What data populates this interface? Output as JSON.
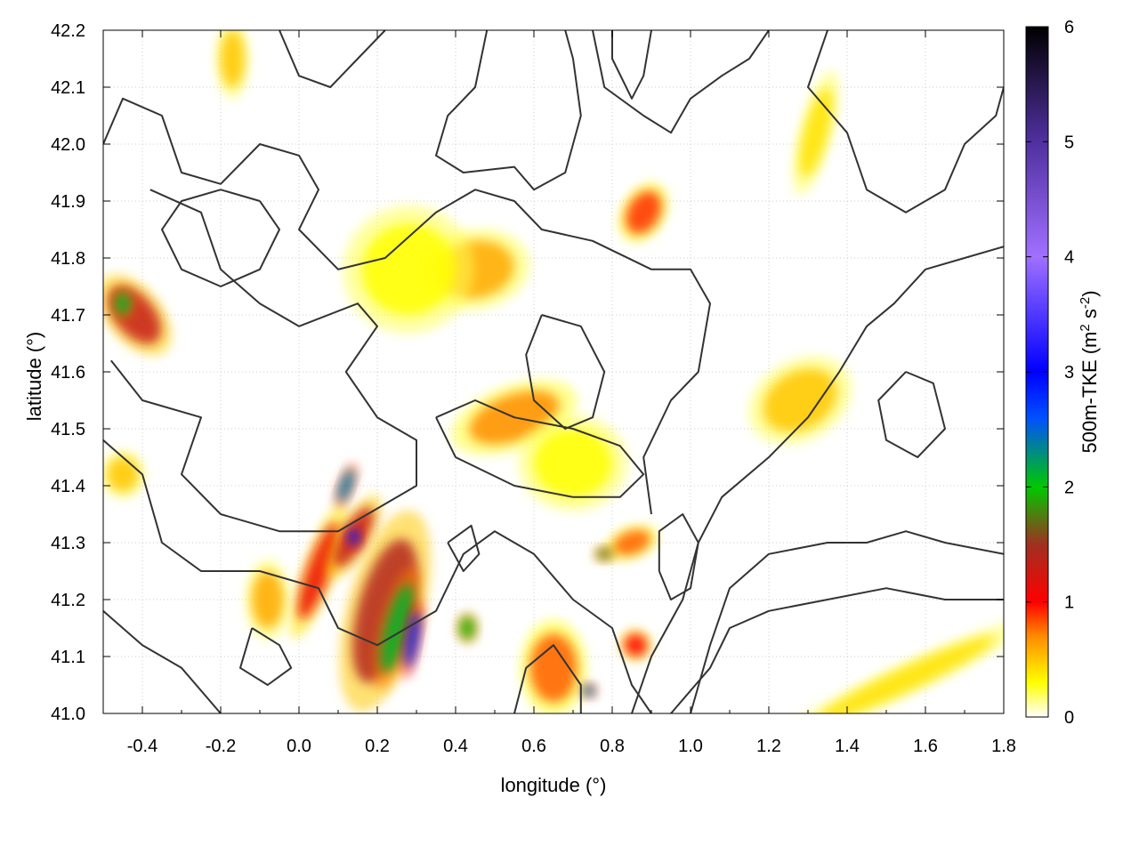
{
  "chart_data": {
    "type": "heatmap",
    "title": "",
    "xlabel": "longitude (°)",
    "ylabel": "latitude (°)",
    "xlim": [
      -0.5,
      1.8
    ],
    "ylim": [
      41.0,
      42.2
    ],
    "xticks": [
      "-0.4",
      "-0.2",
      "0.0",
      "0.2",
      "0.4",
      "0.6",
      "0.8",
      "1.0",
      "1.2",
      "1.4",
      "1.6",
      "1.8"
    ],
    "yticks": [
      "41.0",
      "41.1",
      "41.2",
      "41.3",
      "41.4",
      "41.5",
      "41.6",
      "41.7",
      "41.8",
      "41.9",
      "42.0",
      "42.1",
      "42.2"
    ],
    "grid": true,
    "colorbar": {
      "label_main": "500m-TKE (m",
      "label_sup1": "2",
      "label_mid": " s",
      "label_sup2": "-2",
      "label_end": ")",
      "range": [
        0,
        6
      ],
      "ticks": [
        "0",
        "1",
        "2",
        "3",
        "4",
        "5",
        "6"
      ],
      "stops": [
        {
          "value": 0.0,
          "color": "#ffffff"
        },
        {
          "value": 0.3,
          "color": "#ffff00"
        },
        {
          "value": 0.7,
          "color": "#ff8c00"
        },
        {
          "value": 1.0,
          "color": "#ff0000"
        },
        {
          "value": 1.5,
          "color": "#a03020"
        },
        {
          "value": 2.0,
          "color": "#00c800"
        },
        {
          "value": 2.6,
          "color": "#0050ff"
        },
        {
          "value": 3.0,
          "color": "#0000ff"
        },
        {
          "value": 4.0,
          "color": "#a070ff"
        },
        {
          "value": 5.0,
          "color": "#5030a0"
        },
        {
          "value": 6.0,
          "color": "#000000"
        }
      ]
    },
    "contour_color": "#333333",
    "tke_patches": [
      {
        "lon": -0.42,
        "lat": 41.7,
        "rx": 0.05,
        "ry": 0.06,
        "rot": -40,
        "value": 1.3
      },
      {
        "lon": -0.45,
        "lat": 41.72,
        "rx": 0.02,
        "ry": 0.02,
        "rot": 0,
        "value": 2.1
      },
      {
        "lon": 0.05,
        "lat": 41.25,
        "rx": 0.03,
        "ry": 0.09,
        "rot": 20,
        "value": 1.1
      },
      {
        "lon": 0.22,
        "lat": 41.18,
        "rx": 0.07,
        "ry": 0.13,
        "rot": 15,
        "value": 1.4
      },
      {
        "lon": 0.25,
        "lat": 41.15,
        "rx": 0.03,
        "ry": 0.08,
        "rot": 15,
        "value": 2.1
      },
      {
        "lon": 0.29,
        "lat": 41.13,
        "rx": 0.015,
        "ry": 0.05,
        "rot": 10,
        "value": 2.8
      },
      {
        "lon": 0.14,
        "lat": 41.31,
        "rx": 0.03,
        "ry": 0.06,
        "rot": 30,
        "value": 1.3
      },
      {
        "lon": 0.14,
        "lat": 41.31,
        "rx": 0.015,
        "ry": 0.015,
        "rot": 0,
        "value": 2.8
      },
      {
        "lon": 0.12,
        "lat": 41.4,
        "rx": 0.015,
        "ry": 0.03,
        "rot": 20,
        "value": 2.4
      },
      {
        "lon": 0.43,
        "lat": 41.15,
        "rx": 0.02,
        "ry": 0.02,
        "rot": 0,
        "value": 1.9
      },
      {
        "lon": 0.65,
        "lat": 41.08,
        "rx": 0.06,
        "ry": 0.06,
        "rot": 0,
        "value": 0.8
      },
      {
        "lon": 0.55,
        "lat": 41.52,
        "rx": 0.12,
        "ry": 0.04,
        "rot": -20,
        "value": 0.7
      },
      {
        "lon": 0.45,
        "lat": 41.78,
        "rx": 0.1,
        "ry": 0.05,
        "rot": -10,
        "value": 0.6
      },
      {
        "lon": 0.88,
        "lat": 41.88,
        "rx": 0.04,
        "ry": 0.04,
        "rot": 30,
        "value": 0.9
      },
      {
        "lon": 1.28,
        "lat": 41.55,
        "rx": 0.1,
        "ry": 0.05,
        "rot": -30,
        "value": 0.5
      },
      {
        "lon": 0.28,
        "lat": 41.78,
        "rx": 0.12,
        "ry": 0.08,
        "rot": -20,
        "value": 0.3
      },
      {
        "lon": -0.08,
        "lat": 41.2,
        "rx": 0.04,
        "ry": 0.05,
        "rot": 0,
        "value": 0.6
      },
      {
        "lon": -0.45,
        "lat": 41.42,
        "rx": 0.04,
        "ry": 0.03,
        "rot": 0,
        "value": 0.5
      },
      {
        "lon": 1.55,
        "lat": 41.06,
        "rx": 0.25,
        "ry": 0.02,
        "rot": -25,
        "value": 0.4
      },
      {
        "lon": 1.32,
        "lat": 42.02,
        "rx": 0.03,
        "ry": 0.08,
        "rot": 15,
        "value": 0.4
      },
      {
        "lon": 0.85,
        "lat": 41.3,
        "rx": 0.05,
        "ry": 0.02,
        "rot": -20,
        "value": 0.8
      },
      {
        "lon": 0.78,
        "lat": 41.28,
        "rx": 0.02,
        "ry": 0.01,
        "rot": 0,
        "value": 1.7
      },
      {
        "lon": 0.74,
        "lat": 41.04,
        "rx": 0.015,
        "ry": 0.01,
        "rot": 0,
        "value": 2.4
      },
      {
        "lon": 0.86,
        "lat": 41.12,
        "rx": 0.03,
        "ry": 0.02,
        "rot": 30,
        "value": 1.0
      },
      {
        "lon": 0.7,
        "lat": 41.44,
        "rx": 0.1,
        "ry": 0.06,
        "rot": 0,
        "value": 0.3
      },
      {
        "lon": -0.17,
        "lat": 42.15,
        "rx": 0.03,
        "ry": 0.05,
        "rot": 0,
        "value": 0.5
      }
    ],
    "contours": [
      [
        [
          -0.5,
          42.0
        ],
        [
          -0.45,
          42.08
        ],
        [
          -0.35,
          42.05
        ],
        [
          -0.3,
          41.95
        ],
        [
          -0.2,
          41.93
        ],
        [
          -0.1,
          42.0
        ],
        [
          0.0,
          41.98
        ],
        [
          0.05,
          41.92
        ],
        [
          0.0,
          41.85
        ],
        [
          0.1,
          41.78
        ],
        [
          0.22,
          41.8
        ],
        [
          0.35,
          41.88
        ],
        [
          0.45,
          41.92
        ],
        [
          0.55,
          41.9
        ],
        [
          0.62,
          41.85
        ],
        [
          0.75,
          41.83
        ],
        [
          0.9,
          41.78
        ],
        [
          1.0,
          41.78
        ],
        [
          1.05,
          41.72
        ],
        [
          1.02,
          41.6
        ],
        [
          0.95,
          41.55
        ],
        [
          0.88,
          41.45
        ],
        [
          0.9,
          41.35
        ]
      ],
      [
        [
          -0.38,
          41.92
        ],
        [
          -0.25,
          41.88
        ],
        [
          -0.2,
          41.78
        ],
        [
          -0.1,
          41.72
        ],
        [
          0.0,
          41.68
        ],
        [
          0.15,
          41.72
        ],
        [
          0.2,
          41.68
        ],
        [
          0.12,
          41.6
        ],
        [
          0.2,
          41.52
        ],
        [
          0.3,
          41.48
        ],
        [
          0.3,
          41.4
        ],
        [
          0.2,
          41.36
        ],
        [
          0.1,
          41.32
        ],
        [
          -0.05,
          41.32
        ],
        [
          -0.2,
          41.35
        ],
        [
          -0.3,
          41.42
        ],
        [
          -0.25,
          41.52
        ],
        [
          -0.4,
          41.55
        ],
        [
          -0.48,
          41.62
        ]
      ],
      [
        [
          -0.5,
          41.48
        ],
        [
          -0.4,
          41.42
        ],
        [
          -0.35,
          41.3
        ],
        [
          -0.25,
          41.25
        ],
        [
          -0.1,
          41.25
        ],
        [
          0.05,
          41.22
        ],
        [
          0.1,
          41.15
        ],
        [
          0.2,
          41.12
        ],
        [
          0.35,
          41.18
        ],
        [
          0.42,
          41.28
        ],
        [
          0.5,
          41.32
        ],
        [
          0.6,
          41.28
        ],
        [
          0.7,
          41.2
        ],
        [
          0.8,
          41.15
        ],
        [
          0.85,
          41.05
        ],
        [
          0.9,
          41.0
        ]
      ],
      [
        [
          -0.5,
          41.18
        ],
        [
          -0.4,
          41.12
        ],
        [
          -0.3,
          41.08
        ],
        [
          -0.2,
          41.0
        ]
      ],
      [
        [
          0.55,
          41.0
        ],
        [
          0.58,
          41.08
        ],
        [
          0.65,
          41.12
        ],
        [
          0.72,
          41.05
        ],
        [
          0.72,
          41.0
        ]
      ],
      [
        [
          0.95,
          41.0
        ],
        [
          1.05,
          41.08
        ],
        [
          1.1,
          41.15
        ],
        [
          1.2,
          41.18
        ],
        [
          1.35,
          41.2
        ],
        [
          1.5,
          41.22
        ],
        [
          1.65,
          41.2
        ],
        [
          1.8,
          41.2
        ]
      ],
      [
        [
          1.0,
          41.0
        ],
        [
          1.05,
          41.12
        ],
        [
          1.1,
          41.22
        ],
        [
          1.2,
          41.28
        ],
        [
          1.35,
          41.3
        ],
        [
          1.45,
          41.3
        ],
        [
          1.55,
          41.32
        ],
        [
          1.65,
          41.3
        ],
        [
          1.8,
          41.28
        ]
      ],
      [
        [
          0.85,
          41.0
        ],
        [
          0.9,
          41.1
        ],
        [
          0.98,
          41.2
        ],
        [
          1.02,
          41.3
        ],
        [
          1.08,
          41.38
        ],
        [
          1.2,
          41.45
        ],
        [
          1.3,
          41.52
        ],
        [
          1.38,
          41.6
        ],
        [
          1.45,
          41.68
        ],
        [
          1.52,
          41.72
        ],
        [
          1.6,
          41.78
        ],
        [
          1.7,
          41.8
        ],
        [
          1.8,
          41.82
        ]
      ],
      [
        [
          0.48,
          42.2
        ],
        [
          0.45,
          42.1
        ],
        [
          0.38,
          42.05
        ],
        [
          0.35,
          41.98
        ],
        [
          0.42,
          41.95
        ],
        [
          0.55,
          41.96
        ],
        [
          0.6,
          41.92
        ],
        [
          0.68,
          41.95
        ],
        [
          0.72,
          42.05
        ],
        [
          0.7,
          42.15
        ],
        [
          0.68,
          42.2
        ]
      ],
      [
        [
          0.75,
          42.2
        ],
        [
          0.78,
          42.1
        ],
        [
          0.88,
          42.05
        ],
        [
          0.95,
          42.02
        ],
        [
          1.0,
          42.08
        ],
        [
          1.08,
          42.12
        ],
        [
          1.15,
          42.15
        ],
        [
          1.2,
          42.2
        ]
      ],
      [
        [
          1.35,
          42.2
        ],
        [
          1.3,
          42.1
        ],
        [
          1.4,
          42.02
        ],
        [
          1.45,
          41.92
        ],
        [
          1.55,
          41.88
        ],
        [
          1.65,
          41.92
        ],
        [
          1.7,
          42.0
        ],
        [
          1.78,
          42.05
        ],
        [
          1.8,
          42.1
        ]
      ],
      [
        [
          0.9,
          42.2
        ],
        [
          0.88,
          42.12
        ],
        [
          0.85,
          42.08
        ],
        [
          0.8,
          42.15
        ],
        [
          0.8,
          42.2
        ]
      ],
      [
        [
          -0.1,
          41.9
        ],
        [
          -0.05,
          41.85
        ],
        [
          -0.1,
          41.78
        ],
        [
          -0.2,
          41.75
        ],
        [
          -0.3,
          41.78
        ],
        [
          -0.35,
          41.85
        ],
        [
          -0.3,
          41.9
        ],
        [
          -0.2,
          41.92
        ],
        [
          -0.1,
          41.9
        ]
      ],
      [
        [
          0.62,
          41.7
        ],
        [
          0.72,
          41.68
        ],
        [
          0.78,
          41.6
        ],
        [
          0.75,
          41.52
        ],
        [
          0.68,
          41.5
        ],
        [
          0.6,
          41.55
        ],
        [
          0.58,
          41.63
        ],
        [
          0.62,
          41.7
        ]
      ],
      [
        [
          1.55,
          41.6
        ],
        [
          1.62,
          41.58
        ],
        [
          1.65,
          41.5
        ],
        [
          1.58,
          41.45
        ],
        [
          1.5,
          41.48
        ],
        [
          1.48,
          41.55
        ],
        [
          1.55,
          41.6
        ]
      ],
      [
        [
          0.35,
          41.52
        ],
        [
          0.4,
          41.45
        ],
        [
          0.55,
          41.4
        ],
        [
          0.7,
          41.38
        ],
        [
          0.82,
          41.38
        ],
        [
          0.88,
          41.42
        ],
        [
          0.82,
          41.47
        ],
        [
          0.7,
          41.5
        ],
        [
          0.55,
          41.52
        ],
        [
          0.45,
          41.55
        ],
        [
          0.35,
          41.52
        ]
      ],
      [
        [
          0.92,
          41.25
        ],
        [
          0.95,
          41.2
        ],
        [
          1.0,
          41.22
        ],
        [
          1.02,
          41.3
        ],
        [
          0.98,
          41.35
        ],
        [
          0.92,
          41.32
        ],
        [
          0.92,
          41.25
        ]
      ],
      [
        [
          0.38,
          41.3
        ],
        [
          0.42,
          41.25
        ],
        [
          0.46,
          41.28
        ],
        [
          0.44,
          41.33
        ],
        [
          0.38,
          41.3
        ]
      ],
      [
        [
          -0.05,
          42.2
        ],
        [
          0.0,
          42.12
        ],
        [
          0.08,
          42.1
        ],
        [
          0.15,
          42.15
        ],
        [
          0.22,
          42.2
        ]
      ],
      [
        [
          -0.12,
          41.15
        ],
        [
          -0.05,
          41.12
        ],
        [
          -0.02,
          41.08
        ],
        [
          -0.08,
          41.05
        ],
        [
          -0.15,
          41.08
        ],
        [
          -0.12,
          41.15
        ]
      ]
    ]
  }
}
